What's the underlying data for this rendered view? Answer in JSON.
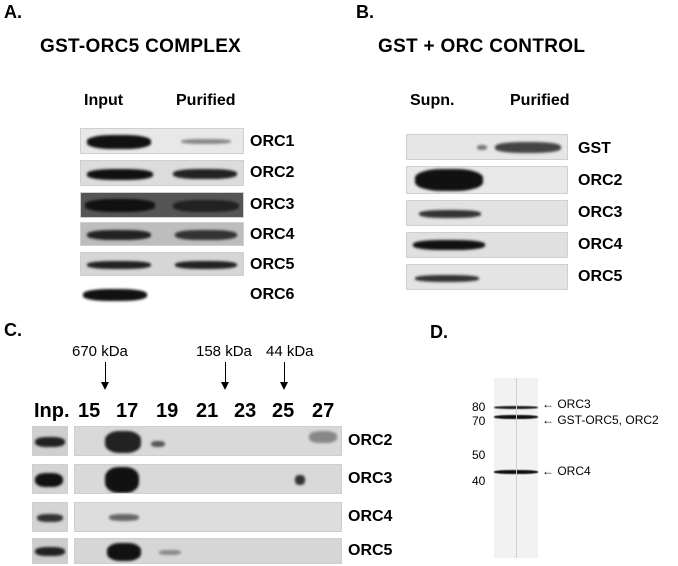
{
  "panel_a": {
    "label": "A.",
    "title": "GST-ORC5 COMPLEX",
    "columns": [
      "Input",
      "Purified"
    ],
    "rows": [
      "ORC1",
      "ORC2",
      "ORC3",
      "ORC4",
      "ORC5",
      "ORC6"
    ]
  },
  "panel_b": {
    "label": "B.",
    "title": "GST + ORC CONTROL",
    "columns": [
      "Supn.",
      "Purified"
    ],
    "rows": [
      "GST",
      "ORC2",
      "ORC3",
      "ORC4",
      "ORC5"
    ]
  },
  "panel_c": {
    "label": "C.",
    "size_markers": [
      "670 kDa",
      "158 kDa",
      "44 kDa"
    ],
    "fractions": [
      "Inp.",
      "15",
      "17",
      "19",
      "21",
      "23",
      "25",
      "27"
    ],
    "rows": [
      "ORC2",
      "ORC3",
      "ORC4",
      "ORC5"
    ]
  },
  "panel_d": {
    "label": "D.",
    "markers": [
      "80",
      "70",
      "50",
      "40"
    ],
    "bands": [
      "ORC3",
      "GST-ORC5, ORC2",
      "ORC4"
    ]
  }
}
